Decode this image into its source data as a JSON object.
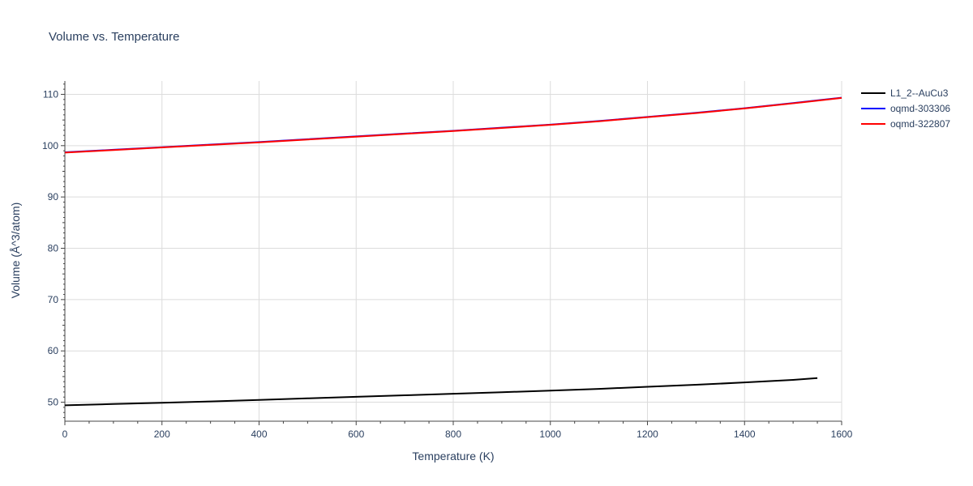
{
  "chart_data": {
    "type": "line",
    "title": "Volume vs. Temperature",
    "xlabel": "Temperature (K)",
    "ylabel": "Volume (Å^3/atom)",
    "xlim": [
      0,
      1600
    ],
    "ylim": [
      46.3,
      112.6
    ],
    "xticks": [
      0,
      200,
      400,
      600,
      800,
      1000,
      1200,
      1400,
      1600
    ],
    "yticks": [
      50,
      60,
      70,
      80,
      90,
      100,
      110
    ],
    "grid": true,
    "legend_position": "top-right",
    "series": [
      {
        "name": "L1_2--AuCu3",
        "color": "#000000",
        "x": [
          0,
          100,
          200,
          300,
          400,
          500,
          600,
          700,
          800,
          900,
          1000,
          1100,
          1200,
          1300,
          1400,
          1500,
          1550
        ],
        "y": [
          49.4,
          49.65,
          49.9,
          50.15,
          50.45,
          50.75,
          51.05,
          51.35,
          51.65,
          51.95,
          52.25,
          52.6,
          53.0,
          53.4,
          53.85,
          54.35,
          54.7
        ]
      },
      {
        "name": "oqmd-303306",
        "color": "#0000ff",
        "x": [
          0,
          100,
          200,
          300,
          400,
          500,
          600,
          700,
          800,
          900,
          1000,
          1100,
          1200,
          1300,
          1400,
          1500,
          1600
        ],
        "y": [
          98.7,
          99.2,
          99.7,
          100.2,
          100.7,
          101.25,
          101.8,
          102.35,
          102.9,
          103.5,
          104.1,
          104.8,
          105.6,
          106.4,
          107.3,
          108.3,
          109.35
        ]
      },
      {
        "name": "oqmd-322807",
        "color": "#ff0000",
        "x": [
          0,
          100,
          200,
          300,
          400,
          500,
          600,
          700,
          800,
          900,
          1000,
          1100,
          1200,
          1300,
          1400,
          1500,
          1600
        ],
        "y": [
          98.65,
          99.15,
          99.65,
          100.15,
          100.65,
          101.2,
          101.75,
          102.3,
          102.85,
          103.45,
          104.05,
          104.75,
          105.55,
          106.35,
          107.25,
          108.25,
          109.3
        ]
      }
    ]
  }
}
